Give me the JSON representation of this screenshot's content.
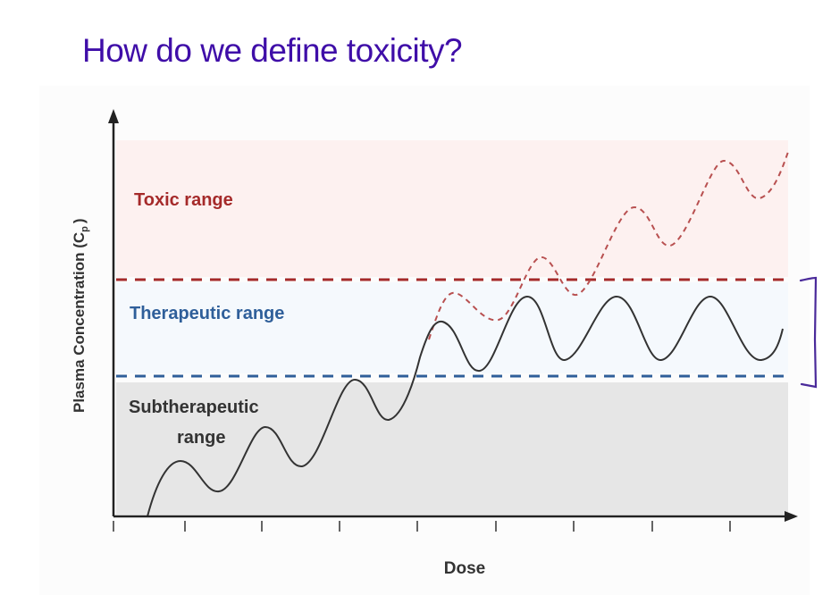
{
  "slide": {
    "title": "How do we define toxicity?"
  },
  "diagram": {
    "y_axis_label": "Plasma Concentration (C",
    "y_axis_sub": "p",
    "y_axis_close": ")",
    "x_axis_label": "Dose",
    "ranges": {
      "toxic": "Toxic range",
      "therapeutic": "Therapeutic range",
      "subtherapeutic_line1": "Subtherapeutic",
      "subtherapeutic_line2": "range"
    },
    "colors": {
      "toxic_band": "#fdf1f0",
      "therapeutic_band": "#f5f9fd",
      "sub_band": "#e6e6e6",
      "toxic_line": "#a52a2a",
      "therapeutic_line": "#2f5f9a",
      "annotation": "#4a2a9a"
    }
  }
}
